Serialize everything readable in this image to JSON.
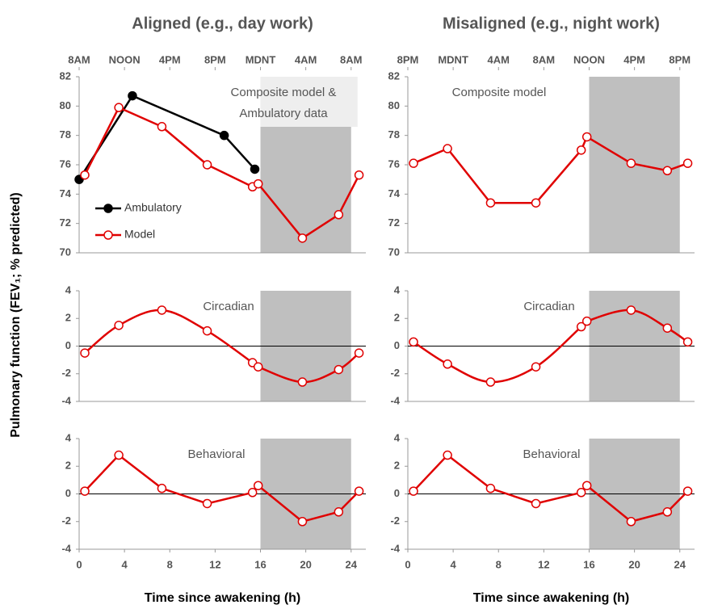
{
  "chart_data": [
    {
      "type": "line",
      "title": "Aligned (e.g., day work)",
      "ylabel": "Pulmonary function (FEV₁; % predicted)",
      "xlim": [
        0,
        25.3
      ],
      "ylim": [
        70,
        82
      ],
      "yticks": [
        70,
        72,
        74,
        76,
        78,
        80,
        82
      ],
      "x2ticks": [
        {
          "value": 0,
          "label": "8AM"
        },
        {
          "value": 4,
          "label": "NOON"
        },
        {
          "value": 8,
          "label": "4PM"
        },
        {
          "value": 12,
          "label": "8PM"
        },
        {
          "value": 16,
          "label": "MDNT"
        },
        {
          "value": 20,
          "label": "4AM"
        },
        {
          "value": 24,
          "label": "8AM"
        }
      ],
      "shade": [
        16,
        24
      ],
      "shade_color": "#bfbfbf",
      "annotation": [
        "Composite model &",
        "Ambulatory data"
      ],
      "series": [
        {
          "name": "Ambulatory",
          "color": "#000000",
          "marker": "filled",
          "x": [
            0,
            4.7,
            12.8,
            15.5
          ],
          "values": [
            75,
            80.7,
            78,
            75.7
          ]
        },
        {
          "name": "Model",
          "color": "#e00000",
          "marker": "open",
          "x": [
            0.5,
            3.5,
            7.3,
            11.3,
            15.3,
            15.8,
            19.7,
            22.9,
            24.7
          ],
          "values": [
            75.3,
            79.9,
            78.6,
            76,
            74.5,
            74.7,
            71,
            72.6,
            75.3
          ]
        }
      ]
    },
    {
      "type": "line",
      "xlim": [
        0,
        25.3
      ],
      "ylim": [
        -4,
        4
      ],
      "yticks": [
        -4,
        -2,
        0,
        2,
        4
      ],
      "shade": [
        16,
        24
      ],
      "shade_color": "#bfbfbf",
      "annotation": [
        "Circadian"
      ],
      "smooth": true,
      "series": [
        {
          "color": "#e00000",
          "marker": "open",
          "x": [
            0.5,
            3.5,
            7.3,
            11.3,
            15.3,
            15.8,
            19.7,
            22.9,
            24.7
          ],
          "values": [
            -0.5,
            1.5,
            2.6,
            1.1,
            -1.2,
            -1.5,
            -2.6,
            -1.7,
            -0.5
          ]
        }
      ]
    },
    {
      "type": "line",
      "xlabel": "Time since awakening (h)",
      "xlim": [
        0,
        25.3
      ],
      "xticks": [
        0,
        4,
        8,
        12,
        16,
        20,
        24
      ],
      "ylim": [
        -4,
        4
      ],
      "yticks": [
        -4,
        -2,
        0,
        2,
        4
      ],
      "shade": [
        16,
        24
      ],
      "shade_color": "#bfbfbf",
      "annotation": [
        "Behavioral"
      ],
      "series": [
        {
          "color": "#e00000",
          "marker": "open",
          "x": [
            0.5,
            3.5,
            7.3,
            11.3,
            15.3,
            15.8,
            19.7,
            22.9,
            24.7
          ],
          "values": [
            0.2,
            2.8,
            0.4,
            -0.7,
            0.1,
            0.6,
            -2,
            -1.3,
            0.2
          ]
        }
      ]
    },
    {
      "type": "line",
      "title": "Misaligned (e.g., night work)",
      "xlim": [
        0,
        25.3
      ],
      "ylim": [
        70,
        82
      ],
      "yticks": [
        70,
        72,
        74,
        76,
        78,
        80,
        82
      ],
      "x2ticks": [
        {
          "value": 0,
          "label": "8PM"
        },
        {
          "value": 4,
          "label": "MDNT"
        },
        {
          "value": 8,
          "label": "4AM"
        },
        {
          "value": 12,
          "label": "8AM"
        },
        {
          "value": 16,
          "label": "NOON"
        },
        {
          "value": 20,
          "label": "4PM"
        },
        {
          "value": 24,
          "label": "8PM"
        }
      ],
      "shade": [
        16,
        24
      ],
      "shade_color": "#bfbfbf",
      "annotation": [
        "Composite model"
      ],
      "series": [
        {
          "color": "#e00000",
          "marker": "open",
          "x": [
            0.5,
            3.5,
            7.3,
            11.3,
            15.3,
            15.8,
            19.7,
            22.9,
            24.7
          ],
          "values": [
            76.1,
            77.1,
            73.4,
            73.4,
            77,
            77.9,
            76.1,
            75.6,
            76.1
          ]
        }
      ]
    },
    {
      "type": "line",
      "xlim": [
        0,
        25.3
      ],
      "ylim": [
        -4,
        4
      ],
      "yticks": [
        -4,
        -2,
        0,
        2,
        4
      ],
      "shade": [
        16,
        24
      ],
      "shade_color": "#bfbfbf",
      "annotation": [
        "Circadian"
      ],
      "smooth": true,
      "series": [
        {
          "color": "#e00000",
          "marker": "open",
          "x": [
            0.5,
            3.5,
            7.3,
            11.3,
            15.3,
            15.8,
            19.7,
            22.9,
            24.7
          ],
          "values": [
            0.3,
            -1.3,
            -2.6,
            -1.5,
            1.4,
            1.8,
            2.6,
            1.3,
            0.3
          ]
        }
      ]
    },
    {
      "type": "line",
      "xlabel": "Time since awakening (h)",
      "xlim": [
        0,
        25.3
      ],
      "xticks": [
        0,
        4,
        8,
        12,
        16,
        20,
        24
      ],
      "ylim": [
        -4,
        4
      ],
      "yticks": [
        -4,
        -2,
        0,
        2,
        4
      ],
      "shade": [
        16,
        24
      ],
      "shade_color": "#bfbfbf",
      "annotation": [
        "Behavioral"
      ],
      "series": [
        {
          "color": "#e00000",
          "marker": "open",
          "x": [
            0.5,
            3.5,
            7.3,
            11.3,
            15.3,
            15.8,
            19.7,
            22.9,
            24.7
          ],
          "values": [
            0.2,
            2.8,
            0.4,
            -0.7,
            0.1,
            0.6,
            -2,
            -1.3,
            0.2
          ]
        }
      ]
    }
  ]
}
